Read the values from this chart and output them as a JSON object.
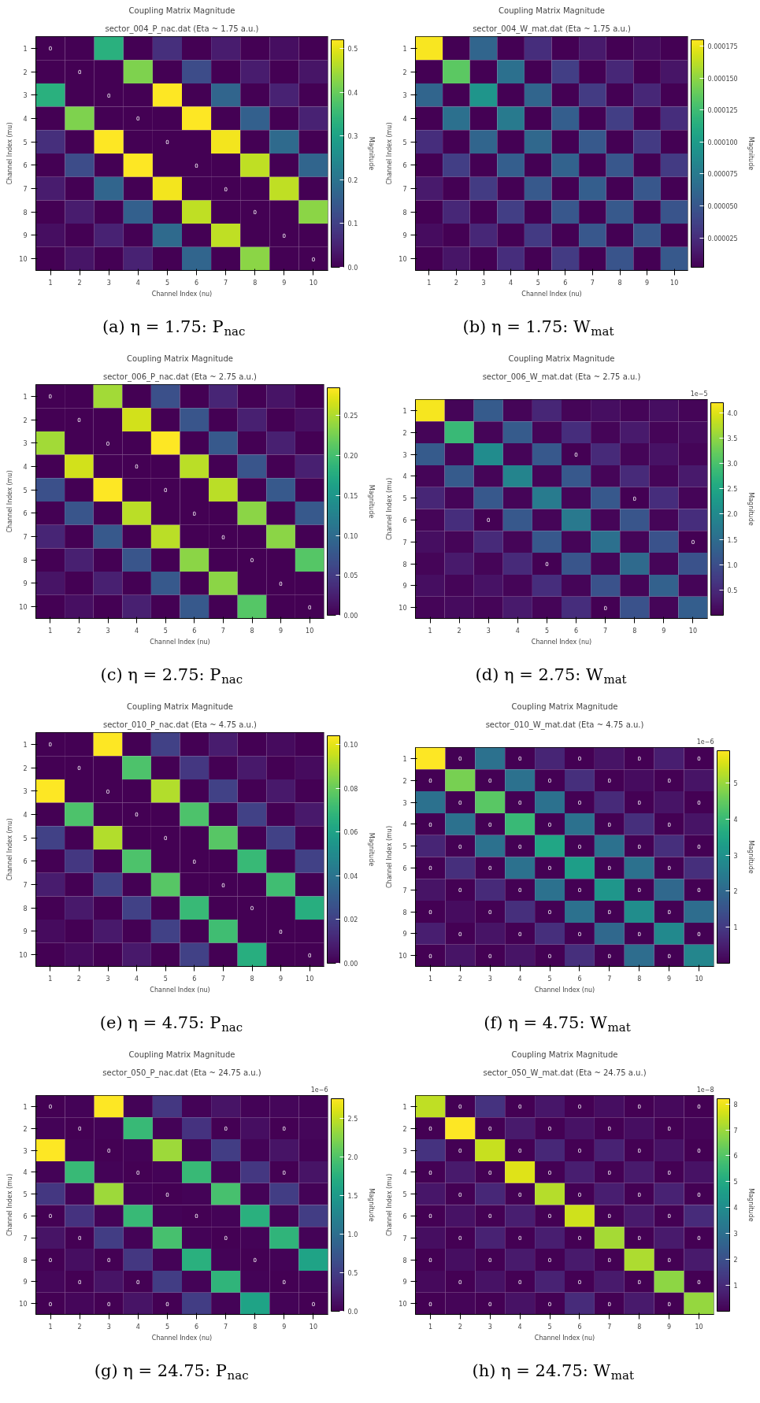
{
  "chart_data": [
    {
      "type": "heatmap",
      "title": "Coupling Matrix Magnitude",
      "subtitle": "sector_004_P_nac.dat (Eta ~ 1.75 a.u.)",
      "xlabel": "Channel Index (nu)",
      "ylabel": "Channel Index (mu)",
      "clabel": "Magnitude",
      "categories": [
        "1",
        "2",
        "3",
        "4",
        "5",
        "6",
        "7",
        "8",
        "9",
        "10"
      ],
      "y_categories": [
        "1",
        "2",
        "3",
        "4",
        "5",
        "6",
        "7",
        "8",
        "9",
        "10"
      ],
      "cells": [
        [
          0,
          0,
          0.33,
          0,
          0.07,
          0,
          0.04,
          0,
          0.02,
          0
        ],
        [
          0,
          0,
          0,
          0.42,
          0,
          0.12,
          0,
          0.04,
          0,
          0.03
        ],
        [
          0.33,
          0,
          0,
          0,
          0.52,
          0,
          0.17,
          0,
          0.05,
          0
        ],
        [
          0,
          0.42,
          0,
          0,
          0,
          0.52,
          0,
          0.16,
          0,
          0.05
        ],
        [
          0.07,
          0,
          0.52,
          0,
          0,
          0,
          0.51,
          0,
          0.18,
          0
        ],
        [
          0,
          0.12,
          0,
          0.52,
          0,
          0,
          0,
          0.47,
          0,
          0.17
        ],
        [
          0.04,
          0,
          0.17,
          0,
          0.51,
          0,
          0,
          0,
          0.47,
          0
        ],
        [
          0,
          0.04,
          0,
          0.16,
          0,
          0.47,
          0,
          0,
          0,
          0.43
        ],
        [
          0.02,
          0,
          0.05,
          0,
          0.18,
          0,
          0.47,
          0,
          0,
          0
        ],
        [
          0,
          0.03,
          0,
          0.05,
          0,
          0.17,
          0,
          0.43,
          0,
          0
        ]
      ],
      "cell_labels": [
        [
          "0",
          null,
          null,
          null,
          null,
          null,
          null,
          null,
          null,
          null
        ],
        [
          null,
          "0",
          null,
          null,
          null,
          null,
          null,
          null,
          null,
          null
        ],
        [
          null,
          null,
          "0",
          null,
          null,
          null,
          null,
          null,
          null,
          null
        ],
        [
          null,
          null,
          null,
          "0",
          null,
          null,
          null,
          null,
          null,
          null
        ],
        [
          null,
          null,
          null,
          null,
          "0",
          null,
          null,
          null,
          null,
          null
        ],
        [
          null,
          null,
          null,
          null,
          null,
          "0",
          null,
          null,
          null,
          null
        ],
        [
          null,
          null,
          null,
          null,
          null,
          null,
          "0",
          null,
          null,
          null
        ],
        [
          null,
          null,
          null,
          null,
          null,
          null,
          null,
          "0",
          null,
          null
        ],
        [
          null,
          null,
          null,
          null,
          null,
          null,
          null,
          null,
          "0",
          null
        ],
        [
          null,
          null,
          null,
          null,
          null,
          null,
          null,
          null,
          null,
          "0"
        ]
      ],
      "clim": [
        0,
        0.52
      ],
      "cticks": [
        {
          "value": 0,
          "label": "0.0"
        },
        {
          "value": 0.1,
          "label": "0.1"
        },
        {
          "value": 0.2,
          "label": "0.2"
        },
        {
          "value": 0.3,
          "label": "0.3"
        },
        {
          "value": 0.4,
          "label": "0.4"
        },
        {
          "value": 0.5,
          "label": "0.5"
        }
      ],
      "annotations": [
        "(a) η = 1.75: P$_{nac}$"
      ]
    },
    {
      "type": "heatmap",
      "title": "Coupling Matrix Magnitude",
      "subtitle": "sector_004_W_mat.dat (Eta ~ 1.75 a.u.)",
      "xlabel": "Channel Index (nu)",
      "ylabel": "Channel Index (mu)",
      "clabel": "Magnitude",
      "categories": [
        "1",
        "2",
        "3",
        "4",
        "5",
        "6",
        "7",
        "8",
        "9",
        "10"
      ],
      "y_categories": [
        "1",
        "2",
        "3",
        "4",
        "5",
        "6",
        "7",
        "8",
        "9",
        "10"
      ],
      "cells": [
        [
          0.000178,
          2e-06,
          6e-05,
          2e-06,
          2.5e-05,
          2e-06,
          1.5e-05,
          2e-06,
          8e-06,
          2e-06
        ],
        [
          2e-06,
          0.000135,
          2e-06,
          6.8e-05,
          2e-06,
          3.5e-05,
          2e-06,
          2.2e-05,
          2e-06,
          1.2e-05
        ],
        [
          6e-05,
          2e-06,
          9.5e-05,
          2e-06,
          6e-05,
          2e-06,
          3.3e-05,
          2e-06,
          2.2e-05,
          2e-06
        ],
        [
          2e-06,
          6.8e-05,
          2e-06,
          7.5e-05,
          2e-06,
          5.5e-05,
          2e-06,
          3.5e-05,
          2e-06,
          2.5e-05
        ],
        [
          2.5e-05,
          2e-06,
          6e-05,
          2e-06,
          6.2e-05,
          2e-06,
          5.2e-05,
          2e-06,
          3.2e-05,
          2e-06
        ],
        [
          2e-06,
          3.5e-05,
          2e-06,
          5.5e-05,
          2e-06,
          5.8e-05,
          2e-06,
          5e-05,
          2e-06,
          3.3e-05
        ],
        [
          1.5e-05,
          2e-06,
          3.3e-05,
          2e-06,
          5.2e-05,
          2e-06,
          5.5e-05,
          2e-06,
          5e-05,
          2e-06
        ],
        [
          2e-06,
          2.2e-05,
          2e-06,
          3.5e-05,
          2e-06,
          5e-05,
          2e-06,
          5.2e-05,
          2e-06,
          4.8e-05
        ],
        [
          8e-06,
          2e-06,
          2.2e-05,
          2e-06,
          3.2e-05,
          2e-06,
          5e-05,
          2e-06,
          5e-05,
          2e-06
        ],
        [
          2e-06,
          1.2e-05,
          2e-06,
          2.5e-05,
          2e-06,
          3.3e-05,
          2e-06,
          4.8e-05,
          2e-06,
          5.2e-05
        ]
      ],
      "clim": [
        2e-06,
        0.00018
      ],
      "cticks": [
        {
          "value": 2.5e-05,
          "label": "0.000025"
        },
        {
          "value": 5e-05,
          "label": "0.000050"
        },
        {
          "value": 7.5e-05,
          "label": "0.000075"
        },
        {
          "value": 0.0001,
          "label": "0.000100"
        },
        {
          "value": 0.000125,
          "label": "0.000125"
        },
        {
          "value": 0.00015,
          "label": "0.000150"
        },
        {
          "value": 0.000175,
          "label": "0.000175"
        }
      ],
      "annotations": [
        "(b) η = 1.75: W$_{mat}$"
      ]
    },
    {
      "type": "heatmap",
      "title": "Coupling Matrix Magnitude",
      "subtitle": "sector_006_P_nac.dat (Eta ~ 2.75 a.u.)",
      "xlabel": "Channel Index (nu)",
      "ylabel": "Channel Index (mu)",
      "clabel": "Magnitude",
      "categories": [
        "1",
        "2",
        "3",
        "4",
        "5",
        "6",
        "7",
        "8",
        "9",
        "10"
      ],
      "y_categories": [
        "1",
        "2",
        "3",
        "4",
        "5",
        "6",
        "7",
        "8",
        "9",
        "10"
      ],
      "cells": [
        [
          0,
          0,
          0.245,
          0,
          0.07,
          0,
          0.03,
          0,
          0.015,
          0
        ],
        [
          0,
          0,
          0,
          0.265,
          0,
          0.075,
          0,
          0.025,
          0,
          0.012
        ],
        [
          0.245,
          0,
          0,
          0,
          0.285,
          0,
          0.08,
          0,
          0.025,
          0
        ],
        [
          0,
          0.265,
          0,
          0,
          0,
          0.255,
          0,
          0.075,
          0,
          0.025
        ],
        [
          0.07,
          0,
          0.285,
          0,
          0,
          0,
          0.255,
          0,
          0.08,
          0
        ],
        [
          0,
          0.075,
          0,
          0.255,
          0,
          0,
          0,
          0.235,
          0,
          0.08
        ],
        [
          0.03,
          0,
          0.08,
          0,
          0.255,
          0,
          0,
          0,
          0.235,
          0
        ],
        [
          0,
          0.025,
          0,
          0.075,
          0,
          0.235,
          0,
          0,
          0,
          0.21
        ],
        [
          0.015,
          0,
          0.025,
          0,
          0.08,
          0,
          0.235,
          0,
          0,
          0
        ],
        [
          0,
          0.012,
          0,
          0.025,
          0,
          0.08,
          0,
          0.21,
          0,
          0
        ]
      ],
      "cell_labels": [
        [
          "0",
          null,
          null,
          null,
          null,
          null,
          null,
          null,
          null,
          null
        ],
        [
          null,
          "0",
          null,
          null,
          null,
          null,
          null,
          null,
          null,
          null
        ],
        [
          null,
          null,
          "0",
          null,
          null,
          null,
          null,
          null,
          null,
          null
        ],
        [
          null,
          null,
          null,
          "0",
          null,
          null,
          null,
          null,
          null,
          null
        ],
        [
          null,
          null,
          null,
          null,
          "0",
          null,
          null,
          null,
          null,
          null
        ],
        [
          null,
          null,
          null,
          null,
          null,
          "0",
          null,
          null,
          null,
          null
        ],
        [
          null,
          null,
          null,
          null,
          null,
          null,
          "0",
          null,
          null,
          null
        ],
        [
          null,
          null,
          null,
          null,
          null,
          null,
          null,
          "0",
          null,
          null
        ],
        [
          null,
          null,
          null,
          null,
          null,
          null,
          null,
          null,
          "0",
          null
        ],
        [
          null,
          null,
          null,
          null,
          null,
          null,
          null,
          null,
          null,
          "0"
        ]
      ],
      "clim": [
        0,
        0.285
      ],
      "cticks": [
        {
          "value": 0,
          "label": "0.00"
        },
        {
          "value": 0.05,
          "label": "0.05"
        },
        {
          "value": 0.1,
          "label": "0.10"
        },
        {
          "value": 0.15,
          "label": "0.15"
        },
        {
          "value": 0.2,
          "label": "0.20"
        },
        {
          "value": 0.25,
          "label": "0.25"
        }
      ],
      "annotations": [
        "(c) η = 2.75: P$_{nac}$"
      ]
    },
    {
      "type": "heatmap",
      "title": "Coupling Matrix Magnitude",
      "subtitle": "sector_006_W_mat.dat (Eta ~ 2.75 a.u.)",
      "xlabel": "Channel Index (nu)",
      "ylabel": "Channel Index (mu)",
      "clabel": "Magnitude",
      "categories": [
        "1",
        "2",
        "3",
        "4",
        "5",
        "6",
        "7",
        "8",
        "9",
        "10"
      ],
      "y_categories": [
        "1",
        "2",
        "3",
        "4",
        "5",
        "6",
        "7",
        "8",
        "9",
        "10"
      ],
      "cells": [
        [
          4.15,
          0.05,
          1.2,
          0.05,
          0.45,
          0.05,
          0.15,
          0.05,
          0.15,
          0.05
        ],
        [
          0.05,
          2.85,
          0.05,
          1.2,
          0.05,
          0.55,
          0.05,
          0.3,
          0.05,
          0.12
        ],
        [
          1.2,
          0.05,
          2.05,
          0.05,
          1.15,
          0,
          0.5,
          0.05,
          0.2,
          0.05
        ],
        [
          0.05,
          1.2,
          0.05,
          1.9,
          0.05,
          1.15,
          0.05,
          0.5,
          0.05,
          0.3
        ],
        [
          0.45,
          0.05,
          1.15,
          0.05,
          1.75,
          0.05,
          1.15,
          0,
          0.55,
          0.05
        ],
        [
          0.05,
          0.55,
          0,
          1.15,
          0.05,
          1.7,
          0.05,
          1.1,
          0.05,
          0.55
        ],
        [
          0.15,
          0.05,
          0.5,
          0.05,
          1.15,
          0.05,
          1.55,
          0.05,
          1.05,
          0
        ],
        [
          0.05,
          0.3,
          0.05,
          0.5,
          0,
          1.1,
          0.05,
          1.45,
          0.05,
          1.05
        ],
        [
          0.15,
          0.05,
          0.2,
          0.05,
          0.55,
          0.05,
          1.05,
          0.05,
          1.3,
          0.05
        ],
        [
          0.05,
          0.12,
          0.05,
          0.3,
          0.05,
          0.55,
          0,
          1.05,
          0.05,
          1.25
        ]
      ],
      "cell_labels": [
        [
          null,
          null,
          null,
          null,
          null,
          null,
          null,
          null,
          null,
          null
        ],
        [
          null,
          null,
          null,
          null,
          null,
          null,
          null,
          null,
          null,
          null
        ],
        [
          null,
          null,
          null,
          null,
          null,
          "0",
          null,
          null,
          null,
          null
        ],
        [
          null,
          null,
          null,
          null,
          null,
          null,
          null,
          null,
          null,
          null
        ],
        [
          null,
          null,
          null,
          null,
          null,
          null,
          null,
          "0",
          null,
          null
        ],
        [
          null,
          null,
          "0",
          null,
          null,
          null,
          null,
          null,
          null,
          null
        ],
        [
          null,
          null,
          null,
          null,
          null,
          null,
          null,
          null,
          null,
          "0"
        ],
        [
          null,
          null,
          null,
          null,
          "0",
          null,
          null,
          null,
          null,
          null
        ],
        [
          null,
          null,
          null,
          null,
          null,
          null,
          null,
          null,
          null,
          null
        ],
        [
          null,
          null,
          null,
          null,
          null,
          null,
          "0",
          null,
          null,
          null
        ]
      ],
      "clim": [
        0,
        4.2
      ],
      "cticks": [
        {
          "value": 0.5,
          "label": "0.5"
        },
        {
          "value": 1,
          "label": "1.0"
        },
        {
          "value": 1.5,
          "label": "1.5"
        },
        {
          "value": 2,
          "label": "2.0"
        },
        {
          "value": 2.5,
          "label": "2.5"
        },
        {
          "value": 3,
          "label": "3.0"
        },
        {
          "value": 3.5,
          "label": "3.5"
        },
        {
          "value": 4,
          "label": "4.0"
        }
      ],
      "annotations": [
        "(d) η = 2.75: W$_{mat}$",
        "1e−5"
      ]
    },
    {
      "type": "heatmap",
      "title": "Coupling Matrix Magnitude",
      "subtitle": "sector_010_P_nac.dat (Eta ~ 4.75 a.u.)",
      "xlabel": "Channel Index (nu)",
      "ylabel": "Channel Index (mu)",
      "clabel": "Magnitude",
      "categories": [
        "1",
        "2",
        "3",
        "4",
        "5",
        "6",
        "7",
        "8",
        "9",
        "10"
      ],
      "y_categories": [
        "1",
        "2",
        "3",
        "4",
        "5",
        "6",
        "7",
        "8",
        "9",
        "10"
      ],
      "cells": [
        [
          0,
          0,
          0.104,
          0,
          0.02,
          0,
          0.008,
          0,
          0.003,
          0
        ],
        [
          0,
          0,
          0,
          0.075,
          0,
          0.017,
          0,
          0.007,
          0,
          0.003
        ],
        [
          0.104,
          0,
          0,
          0,
          0.092,
          0,
          0.02,
          0,
          0.007,
          0
        ],
        [
          0,
          0.075,
          0,
          0,
          0,
          0.075,
          0,
          0.02,
          0,
          0.007
        ],
        [
          0.02,
          0,
          0.092,
          0,
          0,
          0,
          0.077,
          0,
          0.02,
          0
        ],
        [
          0,
          0.017,
          0,
          0.075,
          0,
          0,
          0,
          0.07,
          0,
          0.02
        ],
        [
          0.008,
          0,
          0.02,
          0,
          0.077,
          0,
          0,
          0,
          0.072,
          0
        ],
        [
          0,
          0.007,
          0,
          0.02,
          0,
          0.07,
          0,
          0,
          0,
          0.065
        ],
        [
          0.003,
          0,
          0.007,
          0,
          0.02,
          0,
          0.072,
          0,
          0,
          0
        ],
        [
          0,
          0.003,
          0,
          0.007,
          0,
          0.02,
          0,
          0.065,
          0,
          0
        ]
      ],
      "cell_labels": [
        [
          "0",
          null,
          null,
          null,
          null,
          null,
          null,
          null,
          null,
          null
        ],
        [
          null,
          "0",
          null,
          null,
          null,
          null,
          null,
          null,
          null,
          null
        ],
        [
          null,
          null,
          "0",
          null,
          null,
          null,
          null,
          null,
          null,
          null
        ],
        [
          null,
          null,
          null,
          "0",
          null,
          null,
          null,
          null,
          null,
          null
        ],
        [
          null,
          null,
          null,
          null,
          "0",
          null,
          null,
          null,
          null,
          null
        ],
        [
          null,
          null,
          null,
          null,
          null,
          "0",
          null,
          null,
          null,
          null
        ],
        [
          null,
          null,
          null,
          null,
          null,
          null,
          "0",
          null,
          null,
          null
        ],
        [
          null,
          null,
          null,
          null,
          null,
          null,
          null,
          "0",
          null,
          null
        ],
        [
          null,
          null,
          null,
          null,
          null,
          null,
          null,
          null,
          "0",
          null
        ],
        [
          null,
          null,
          null,
          null,
          null,
          null,
          null,
          null,
          null,
          "0"
        ]
      ],
      "clim": [
        0,
        0.104
      ],
      "cticks": [
        {
          "value": 0,
          "label": "0.00"
        },
        {
          "value": 0.02,
          "label": "0.02"
        },
        {
          "value": 0.04,
          "label": "0.04"
        },
        {
          "value": 0.06,
          "label": "0.06"
        },
        {
          "value": 0.08,
          "label": "0.08"
        },
        {
          "value": 0.1,
          "label": "0.10"
        }
      ],
      "annotations": [
        "(e) η = 4.75: P$_{nac}$"
      ]
    },
    {
      "type": "heatmap",
      "title": "Coupling Matrix Magnitude",
      "subtitle": "sector_010_W_mat.dat (Eta ~ 4.75 a.u.)",
      "xlabel": "Channel Index (nu)",
      "ylabel": "Channel Index (mu)",
      "clabel": "Magnitude",
      "categories": [
        "1",
        "2",
        "3",
        "4",
        "5",
        "6",
        "7",
        "8",
        "9",
        "10"
      ],
      "y_categories": [
        "1",
        "2",
        "3",
        "4",
        "5",
        "6",
        "7",
        "8",
        "9",
        "10"
      ],
      "cells": [
        [
          5.9,
          0,
          2.2,
          0,
          0.6,
          0,
          0.3,
          0,
          0.5,
          0
        ],
        [
          0,
          4.7,
          0,
          2.2,
          0,
          0.8,
          0,
          0.2,
          0,
          0.3
        ],
        [
          2.2,
          0,
          4.4,
          0,
          2.2,
          0,
          0.7,
          0,
          0.3,
          0
        ],
        [
          0,
          2.2,
          0,
          4.0,
          0,
          2.2,
          0,
          0.8,
          0,
          0.3
        ],
        [
          0.6,
          0,
          2.2,
          0,
          3.5,
          0,
          2.2,
          0,
          0.8,
          0
        ],
        [
          0,
          0.8,
          0,
          2.2,
          0,
          3.3,
          0,
          2.2,
          0,
          0.8
        ],
        [
          0.3,
          0,
          0.7,
          0,
          2.2,
          0,
          3.1,
          0,
          2.0,
          0
        ],
        [
          0,
          0.2,
          0,
          0.8,
          0,
          2.2,
          0,
          2.9,
          0,
          2.1
        ],
        [
          0.5,
          0,
          0.3,
          0,
          0.8,
          0,
          2.0,
          0,
          2.8,
          0
        ],
        [
          0,
          0.3,
          0,
          0.3,
          0,
          0.8,
          0,
          2.1,
          0,
          2.7
        ]
      ],
      "cell_labels": [
        [
          null,
          "0",
          null,
          "0",
          null,
          "0",
          null,
          "0",
          null,
          "0"
        ],
        [
          "0",
          null,
          "0",
          null,
          "0",
          null,
          "0",
          null,
          "0",
          null
        ],
        [
          null,
          "0",
          null,
          "0",
          null,
          "0",
          null,
          "0",
          null,
          "0"
        ],
        [
          "0",
          null,
          "0",
          null,
          "0",
          null,
          "0",
          null,
          "0",
          null
        ],
        [
          null,
          "0",
          null,
          "0",
          null,
          "0",
          null,
          "0",
          null,
          "0"
        ],
        [
          "0",
          null,
          "0",
          null,
          "0",
          null,
          "0",
          null,
          "0",
          null
        ],
        [
          null,
          "0",
          null,
          "0",
          null,
          "0",
          null,
          "0",
          null,
          "0"
        ],
        [
          "0",
          null,
          "0",
          null,
          "0",
          null,
          "0",
          null,
          "0",
          null
        ],
        [
          null,
          "0",
          null,
          "0",
          null,
          "0",
          null,
          "0",
          null,
          "0"
        ],
        [
          "0",
          null,
          "0",
          null,
          "0",
          null,
          "0",
          null,
          "0",
          null
        ]
      ],
      "clim": [
        0,
        5.9
      ],
      "cticks": [
        1,
        2,
        3,
        4,
        5
      ],
      "annotations": [
        "(f) η = 4.75: W$_{mat}$",
        "1e−6"
      ]
    },
    {
      "type": "heatmap",
      "title": "Coupling Matrix Magnitude",
      "subtitle": "sector_050_P_nac.dat (Eta ~ 24.75 a.u.)",
      "xlabel": "Channel Index (nu)",
      "ylabel": "Channel Index (mu)",
      "clabel": "Magnitude",
      "categories": [
        "1",
        "2",
        "3",
        "4",
        "5",
        "6",
        "7",
        "8",
        "9",
        "10"
      ],
      "y_categories": [
        "1",
        "2",
        "3",
        "4",
        "5",
        "6",
        "7",
        "8",
        "9",
        "10"
      ],
      "cells": [
        [
          0,
          0.03,
          2.75,
          0.03,
          0.45,
          0.03,
          0.15,
          0.03,
          0.05,
          0.03
        ],
        [
          0.03,
          0,
          0.03,
          1.85,
          0.03,
          0.4,
          0,
          0.1,
          0,
          0.05
        ],
        [
          2.75,
          0.03,
          0,
          0.03,
          2.35,
          0.03,
          0.5,
          0.03,
          0.15,
          0.03
        ],
        [
          0.03,
          1.85,
          0.03,
          0,
          0.03,
          1.85,
          0.03,
          0.45,
          0,
          0.15
        ],
        [
          0.45,
          0.03,
          2.35,
          0.03,
          0,
          0.03,
          1.95,
          0.03,
          0.5,
          0.03
        ],
        [
          0,
          0.4,
          0.03,
          1.85,
          0.03,
          0,
          0.03,
          1.75,
          0.03,
          0.5
        ],
        [
          0.15,
          0,
          0.5,
          0.03,
          1.95,
          0.03,
          0,
          0.03,
          1.8,
          0.03
        ],
        [
          0,
          0.1,
          0,
          0.45,
          0.03,
          1.75,
          0.03,
          0,
          0.03,
          1.6
        ],
        [
          0.05,
          0,
          0.15,
          0,
          0.5,
          0.03,
          1.8,
          0.03,
          0,
          0.03
        ],
        [
          0,
          0.05,
          0,
          0.15,
          0,
          0.5,
          0.03,
          1.6,
          0.03,
          0
        ]
      ],
      "cell_labels": [
        [
          "0",
          null,
          null,
          null,
          null,
          null,
          null,
          null,
          null,
          null
        ],
        [
          null,
          "0",
          null,
          null,
          null,
          null,
          "0",
          null,
          "0",
          null
        ],
        [
          null,
          null,
          "0",
          null,
          null,
          null,
          null,
          null,
          null,
          null
        ],
        [
          null,
          null,
          null,
          "0",
          null,
          null,
          null,
          null,
          "0",
          null
        ],
        [
          null,
          null,
          null,
          null,
          "0",
          null,
          null,
          null,
          null,
          null
        ],
        [
          "0",
          null,
          null,
          null,
          null,
          "0",
          null,
          null,
          null,
          null
        ],
        [
          null,
          "0",
          null,
          null,
          null,
          null,
          "0",
          null,
          null,
          null
        ],
        [
          "0",
          null,
          "0",
          null,
          null,
          null,
          null,
          "0",
          null,
          null
        ],
        [
          null,
          "0",
          null,
          "0",
          null,
          null,
          null,
          null,
          "0",
          null
        ],
        [
          "0",
          null,
          "0",
          null,
          "0",
          null,
          null,
          null,
          null,
          "0"
        ]
      ],
      "clim": [
        0,
        2.75
      ],
      "cticks": [
        {
          "value": 0,
          "label": "0.0"
        },
        {
          "value": 0.5,
          "label": "0.5"
        },
        {
          "value": 1,
          "label": "1.0"
        },
        {
          "value": 1.5,
          "label": "1.5"
        },
        {
          "value": 2,
          "label": "2.0"
        },
        {
          "value": 2.5,
          "label": "2.5"
        }
      ],
      "annotations": [
        "(g) η = 24.75: P$_{nac}$",
        "1e−6"
      ]
    },
    {
      "type": "heatmap",
      "title": "Coupling Matrix Magnitude",
      "subtitle": "sector_050_W_mat.dat (Eta ~ 24.75 a.u.)",
      "xlabel": "Channel Index (nu)",
      "ylabel": "Channel Index (mu)",
      "clabel": "Magnitude",
      "categories": [
        "1",
        "2",
        "3",
        "4",
        "5",
        "6",
        "7",
        "8",
        "9",
        "10"
      ],
      "y_categories": [
        "1",
        "2",
        "3",
        "4",
        "5",
        "6",
        "7",
        "8",
        "9",
        "10"
      ],
      "cells": [
        [
          7.4,
          0,
          1.2,
          0,
          0.5,
          0,
          0.3,
          0,
          0.2,
          0
        ],
        [
          0,
          8.2,
          0,
          0.6,
          0,
          0.4,
          0,
          0.3,
          0,
          0.1
        ],
        [
          1.2,
          0,
          7.5,
          0,
          0.9,
          0,
          0.8,
          0,
          0.4,
          0
        ],
        [
          0,
          0.6,
          0,
          7.8,
          0,
          0.7,
          0,
          0.6,
          0,
          0.4
        ],
        [
          0.5,
          0,
          0.9,
          0,
          7.3,
          0,
          0.7,
          0,
          0.8,
          0
        ],
        [
          0,
          0.4,
          0,
          0.7,
          0,
          7.6,
          0,
          0.6,
          0,
          1.0
        ],
        [
          0.3,
          0,
          0.8,
          0,
          0.7,
          0,
          7.1,
          0,
          0.6,
          0
        ],
        [
          0,
          0.3,
          0,
          0.6,
          0,
          0.6,
          0,
          7.2,
          0,
          0.6
        ],
        [
          0.2,
          0,
          0.4,
          0,
          0.8,
          0,
          0.6,
          0,
          6.8,
          0
        ],
        [
          0,
          0.1,
          0,
          0.4,
          0,
          1.0,
          0,
          0.6,
          0,
          6.9
        ]
      ],
      "cell_labels": [
        [
          null,
          "0",
          null,
          "0",
          null,
          "0",
          null,
          "0",
          null,
          "0"
        ],
        [
          "0",
          null,
          "0",
          null,
          "0",
          null,
          "0",
          null,
          "0",
          null
        ],
        [
          null,
          "0",
          null,
          "0",
          null,
          "0",
          null,
          "0",
          null,
          "0"
        ],
        [
          "0",
          null,
          "0",
          null,
          "0",
          null,
          "0",
          null,
          "0",
          null
        ],
        [
          null,
          "0",
          null,
          "0",
          null,
          "0",
          null,
          "0",
          null,
          "0"
        ],
        [
          "0",
          null,
          "0",
          null,
          "0",
          null,
          "0",
          null,
          "0",
          null
        ],
        [
          null,
          "0",
          null,
          "0",
          null,
          "0",
          null,
          "0",
          null,
          "0"
        ],
        [
          "0",
          null,
          "0",
          null,
          "0",
          null,
          "0",
          null,
          "0",
          null
        ],
        [
          null,
          "0",
          null,
          "0",
          null,
          "0",
          null,
          "0",
          null,
          "0"
        ],
        [
          "0",
          null,
          "0",
          null,
          "0",
          null,
          "0",
          null,
          "0",
          null
        ]
      ],
      "clim": [
        0,
        8.2
      ],
      "cticks": [
        1,
        2,
        3,
        4,
        5,
        6,
        7,
        8
      ],
      "annotations": [
        "(h) η = 24.75: W$_{mat}$",
        "1e−8"
      ]
    }
  ]
}
